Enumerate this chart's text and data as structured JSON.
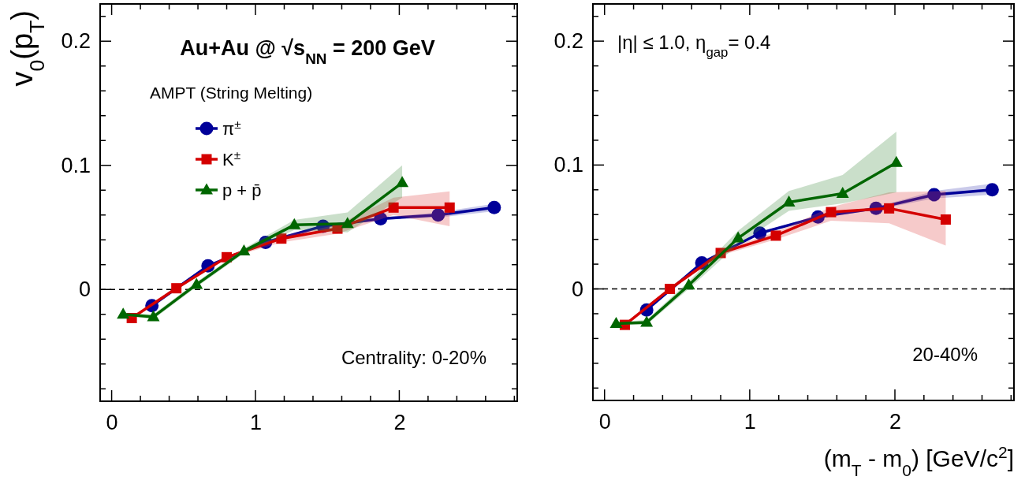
{
  "chart_data": [
    {
      "type": "line",
      "ylabel": "v$_{0}$(p$_{T}$)",
      "legend_title": "AMPT (String Melting)",
      "legend": "top left",
      "line_style": "solid",
      "annotations": [
        "Au+Au @ √s$_{NN}$ = 200 GeV",
        "Centrality: 0-20%"
      ],
      "xlim": [
        -0.08,
        2.82
      ],
      "ylim": [
        -0.09,
        0.23
      ],
      "xticks": [
        0,
        {
          "value": 0.2,
          "label": null
        },
        {
          "value": 0.4,
          "label": null
        },
        {
          "value": 0.6,
          "label": null
        },
        {
          "value": 0.8,
          "label": null
        },
        1,
        {
          "value": 1.2,
          "label": null
        },
        {
          "value": 1.4,
          "label": null
        },
        {
          "value": 1.6,
          "label": null
        },
        {
          "value": 1.8,
          "label": null
        },
        2,
        {
          "value": 2.2,
          "label": null
        },
        {
          "value": 2.4,
          "label": null
        },
        {
          "value": 2.6,
          "label": null
        },
        {
          "value": 2.8,
          "label": null
        }
      ],
      "yticks": [
        {
          "value": -0.08,
          "label": null
        },
        {
          "value": -0.06,
          "label": null
        },
        {
          "value": -0.04,
          "label": null
        },
        {
          "value": -0.02,
          "label": null
        },
        0,
        {
          "value": 0.02,
          "label": null
        },
        {
          "value": 0.04,
          "label": null
        },
        {
          "value": 0.06,
          "label": null
        },
        {
          "value": 0.08,
          "label": null
        },
        0.1,
        {
          "value": 0.12,
          "label": null
        },
        {
          "value": 0.14,
          "label": null
        },
        {
          "value": 0.16,
          "label": null
        },
        {
          "value": 0.18,
          "label": null
        },
        0.2,
        {
          "value": 0.22,
          "label": null
        }
      ],
      "ref_lines": [
        {
          "axis": "y",
          "value": 0,
          "line_style": "dashed",
          "color": "#000000"
        }
      ],
      "series": [
        {
          "name": "π$^{±}$",
          "color": "#000099",
          "marker": "circle",
          "x": [
            0.28,
            0.67,
            1.07,
            1.47,
            1.87,
            2.27,
            2.66
          ],
          "values": [
            -0.013,
            0.019,
            0.038,
            0.051,
            0.057,
            0.06,
            0.066
          ],
          "lower": [
            -0.014,
            0.018,
            0.037,
            0.05,
            0.056,
            0.058,
            0.063
          ],
          "upper": [
            -0.012,
            0.02,
            0.039,
            0.052,
            0.058,
            0.062,
            0.069
          ]
        },
        {
          "name": "K$^{±}$",
          "color": "#d40000",
          "marker": "square",
          "x": [
            0.14,
            0.45,
            0.8,
            1.18,
            1.57,
            1.96,
            2.35
          ],
          "values": [
            -0.023,
            0.001,
            0.026,
            0.041,
            0.049,
            0.066,
            0.066
          ],
          "lower": [
            -0.024,
            0.0,
            0.025,
            0.038,
            0.045,
            0.06,
            0.051
          ],
          "upper": [
            -0.022,
            0.002,
            0.027,
            0.043,
            0.052,
            0.074,
            0.079
          ]
        },
        {
          "name": "p + p̄",
          "color": "#006600",
          "marker": "triangle",
          "x": [
            0.08,
            0.29,
            0.59,
            0.92,
            1.27,
            1.64,
            2.02
          ],
          "values": [
            -0.02,
            -0.022,
            0.004,
            0.031,
            0.052,
            0.053,
            0.086
          ],
          "lower": [
            -0.021,
            -0.024,
            0.002,
            0.029,
            0.048,
            0.046,
            0.074
          ],
          "upper": [
            -0.019,
            -0.02,
            0.006,
            0.033,
            0.056,
            0.062,
            0.1
          ]
        }
      ]
    },
    {
      "type": "line",
      "xlabel": "(m$_{T}$ - m$_{0}$) [GeV/c$^{2}$]",
      "line_style": "solid",
      "annotations": [
        "|η| ≤ 1.0, η$_{gap}$= 0.4",
        "20-40%"
      ],
      "xlim": [
        -0.08,
        2.82
      ],
      "ylim": [
        -0.09,
        0.23
      ],
      "xticks": [
        0,
        {
          "value": 0.2,
          "label": null
        },
        {
          "value": 0.4,
          "label": null
        },
        {
          "value": 0.6,
          "label": null
        },
        {
          "value": 0.8,
          "label": null
        },
        1,
        {
          "value": 1.2,
          "label": null
        },
        {
          "value": 1.4,
          "label": null
        },
        {
          "value": 1.6,
          "label": null
        },
        {
          "value": 1.8,
          "label": null
        },
        2,
        {
          "value": 2.2,
          "label": null
        },
        {
          "value": 2.4,
          "label": null
        },
        {
          "value": 2.6,
          "label": null
        },
        {
          "value": 2.8,
          "label": null
        }
      ],
      "yticks": [
        {
          "value": -0.08,
          "label": null
        },
        {
          "value": -0.06,
          "label": null
        },
        {
          "value": -0.04,
          "label": null
        },
        {
          "value": -0.02,
          "label": null
        },
        0,
        {
          "value": 0.02,
          "label": null
        },
        {
          "value": 0.04,
          "label": null
        },
        {
          "value": 0.06,
          "label": null
        },
        {
          "value": 0.08,
          "label": null
        },
        0.1,
        {
          "value": 0.12,
          "label": null
        },
        {
          "value": 0.14,
          "label": null
        },
        {
          "value": 0.16,
          "label": null
        },
        {
          "value": 0.18,
          "label": null
        },
        0.2,
        {
          "value": 0.22,
          "label": null
        }
      ],
      "ref_lines": [
        {
          "axis": "y",
          "value": 0,
          "line_style": "dashed",
          "color": "#000000"
        }
      ],
      "series": [
        {
          "color": "#000099",
          "marker": "circle",
          "x": [
            0.29,
            0.67,
            1.07,
            1.47,
            1.87,
            2.27,
            2.67
          ],
          "values": [
            -0.017,
            0.021,
            0.045,
            0.058,
            0.065,
            0.076,
            0.08
          ],
          "lower": [
            -0.018,
            0.02,
            0.044,
            0.057,
            0.064,
            0.073,
            0.076
          ],
          "upper": [
            -0.016,
            0.022,
            0.046,
            0.059,
            0.066,
            0.079,
            0.085
          ]
        },
        {
          "color": "#d40000",
          "marker": "square",
          "x": [
            0.14,
            0.45,
            0.8,
            1.18,
            1.56,
            1.96,
            2.35
          ],
          "values": [
            -0.029,
            0.0,
            0.029,
            0.043,
            0.062,
            0.065,
            0.056
          ],
          "lower": [
            -0.03,
            -0.001,
            0.027,
            0.04,
            0.055,
            0.053,
            0.035
          ],
          "upper": [
            -0.028,
            0.001,
            0.031,
            0.046,
            0.066,
            0.078,
            0.079
          ]
        },
        {
          "color": "#006600",
          "marker": "triangle",
          "x": [
            0.08,
            0.29,
            0.58,
            0.92,
            1.27,
            1.64,
            2.01
          ],
          "values": [
            -0.028,
            -0.027,
            0.003,
            0.041,
            0.07,
            0.077,
            0.102
          ],
          "lower": [
            -0.029,
            -0.029,
            0.0,
            0.036,
            0.063,
            0.069,
            0.078
          ],
          "upper": [
            -0.027,
            -0.025,
            0.006,
            0.047,
            0.079,
            0.092,
            0.127
          ]
        }
      ]
    }
  ]
}
